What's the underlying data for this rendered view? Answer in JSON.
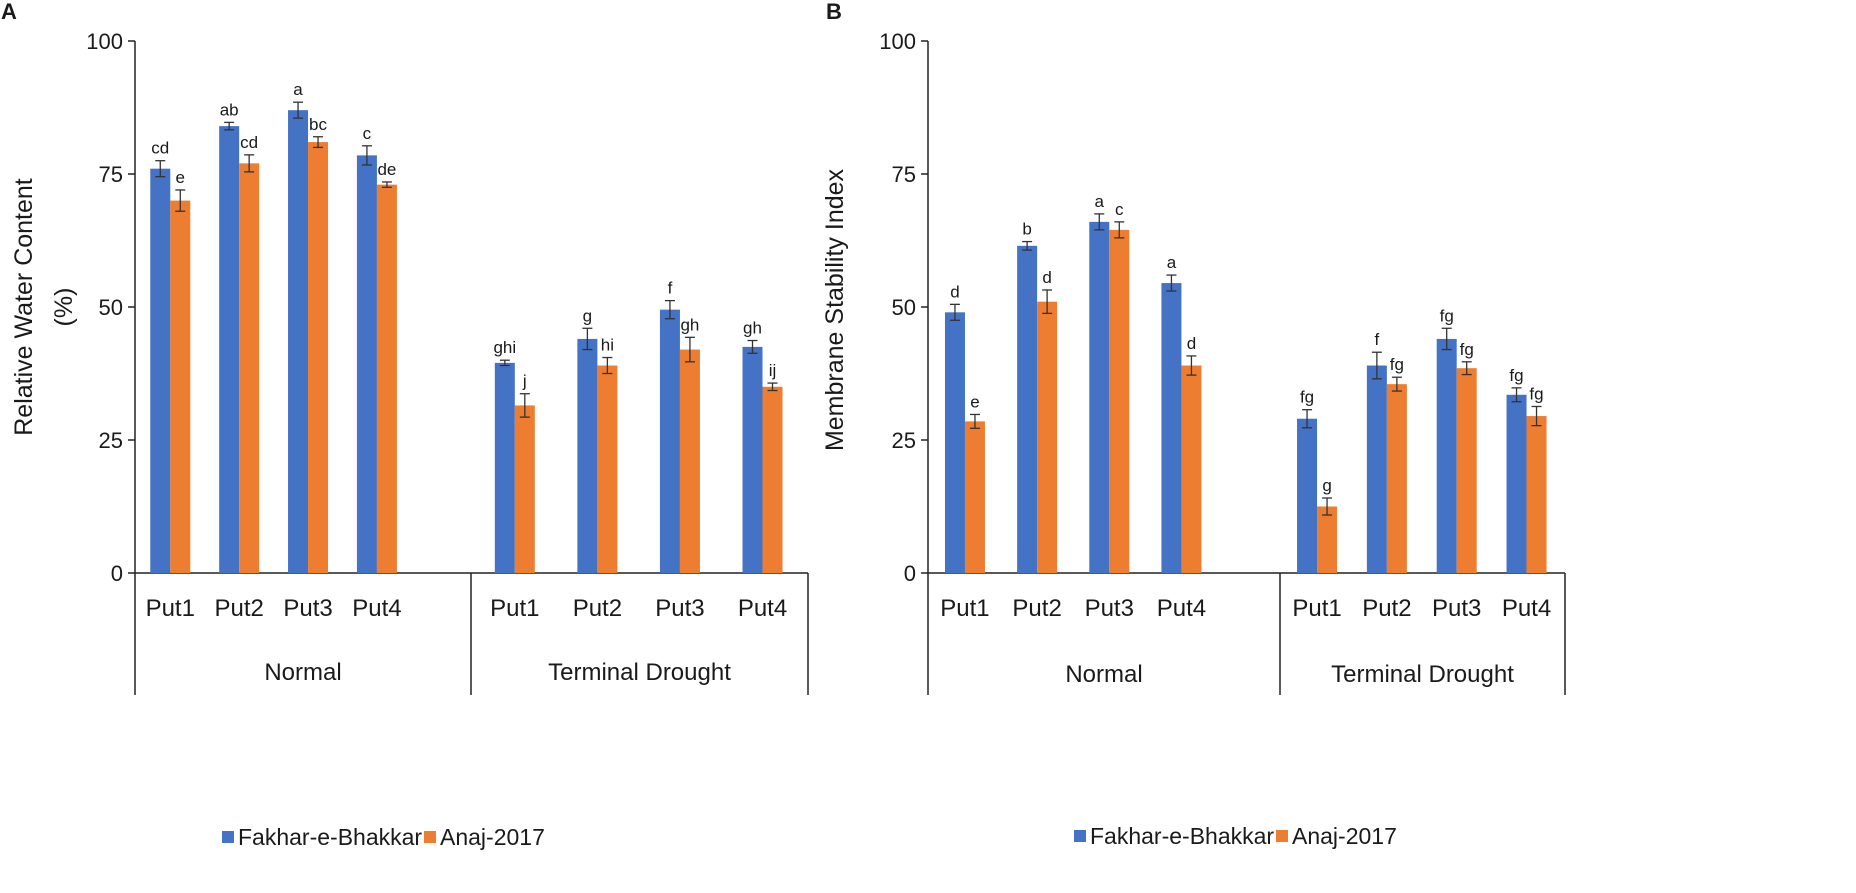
{
  "series_colors": {
    "Fakhar-e-Bhakkar": "#4472C4",
    "Anaj-2017": "#ED7D31"
  },
  "chart_data": [
    {
      "panel": "A",
      "type": "bar",
      "ylabel_lines": [
        "Relative Water Content",
        "(%)"
      ],
      "ylim": [
        0,
        100
      ],
      "yticks": [
        0,
        25,
        50,
        75,
        100
      ],
      "groups": [
        "Normal",
        "Terminal Drought"
      ],
      "categories": [
        "Put1",
        "Put2",
        "Put3",
        "Put4",
        "Put1",
        "Put2",
        "Put3",
        "Put4"
      ],
      "series": [
        {
          "name": "Fakhar-e-Bhakkar",
          "values": [
            76,
            84,
            87,
            78.5,
            39.5,
            44,
            49.5,
            42.5
          ],
          "errors": [
            1.5,
            0.7,
            1.5,
            1.8,
            0.5,
            2.0,
            1.7,
            1.2
          ],
          "letters": [
            "cd",
            "ab",
            "a",
            "c",
            "ghi",
            "g",
            "f",
            "gh"
          ]
        },
        {
          "name": "Anaj-2017",
          "values": [
            70,
            77,
            81,
            73,
            31.5,
            39,
            42,
            35
          ],
          "errors": [
            2.0,
            1.6,
            1.0,
            0.5,
            2.2,
            1.5,
            2.3,
            0.7
          ],
          "letters": [
            "e",
            "cd",
            "bc",
            "de",
            "j",
            "hi",
            "gh",
            "ij"
          ]
        }
      ],
      "legend": [
        "Fakhar-e-Bhakkar",
        "Anaj-2017"
      ]
    },
    {
      "panel": "B",
      "type": "bar",
      "ylabel_lines": [
        "Membrane Stability Index"
      ],
      "ylim": [
        0,
        100
      ],
      "yticks": [
        0,
        25,
        50,
        75,
        100
      ],
      "groups": [
        "Normal",
        "Terminal Drought"
      ],
      "categories": [
        "Put1",
        "Put2",
        "Put3",
        "Put4",
        "Put1",
        "Put2",
        "Put3",
        "Put4"
      ],
      "series": [
        {
          "name": "Fakhar-e-Bhakkar",
          "values": [
            49,
            61.5,
            66,
            54.5,
            29,
            39,
            44,
            33.5
          ],
          "errors": [
            1.5,
            0.8,
            1.5,
            1.5,
            1.7,
            2.5,
            2.0,
            1.3
          ],
          "letters": [
            "d",
            "b",
            "a",
            "a",
            "fg",
            "f",
            "fg",
            "fg"
          ]
        },
        {
          "name": "Anaj-2017",
          "values": [
            28.5,
            51,
            64.5,
            39,
            12.5,
            35.5,
            38.5,
            29.5
          ],
          "errors": [
            1.3,
            2.2,
            1.5,
            1.8,
            1.6,
            1.3,
            1.2,
            1.8
          ],
          "letters": [
            "e",
            "d",
            "c",
            "d",
            "g",
            "fg",
            "fg",
            "fg"
          ]
        }
      ],
      "legend": [
        "Fakhar-e-Bhakkar",
        "Anaj-2017"
      ]
    }
  ]
}
